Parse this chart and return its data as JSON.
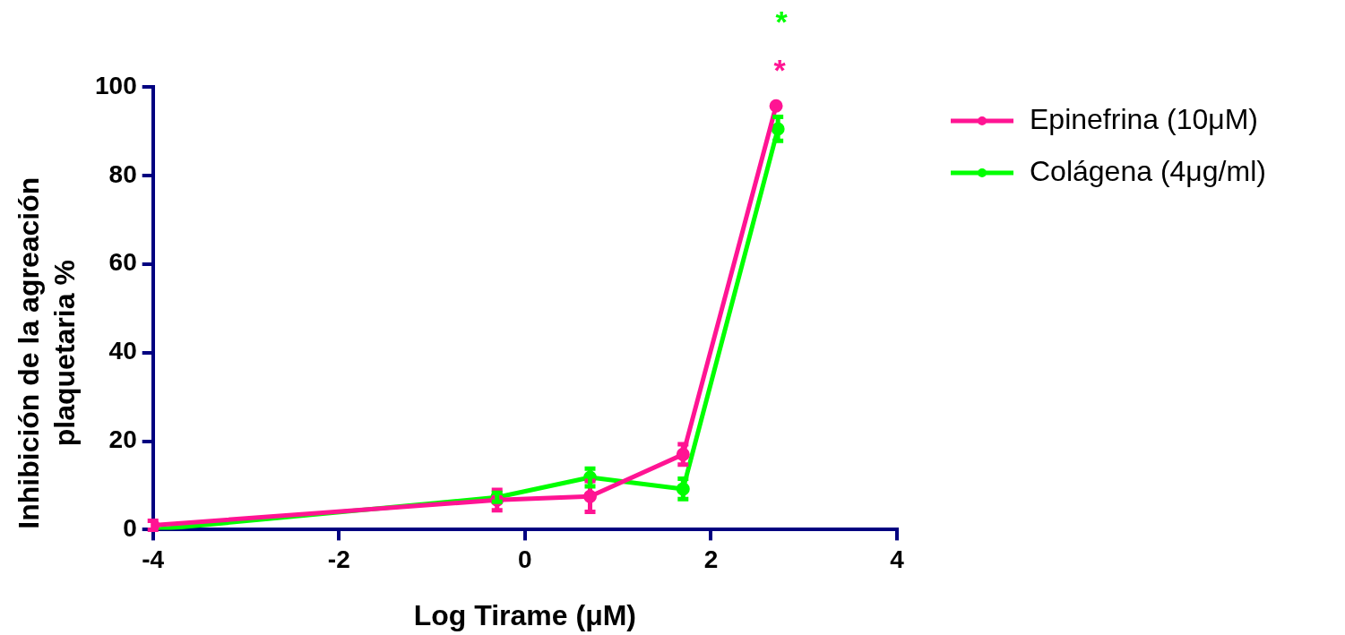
{
  "chart_data": {
    "type": "line",
    "xlabel": "Log Tirame (μM)",
    "ylabel": "Inhibición de la agreación\nplaquetaria %",
    "xlim": [
      -4,
      4
    ],
    "xticks": [
      -4,
      -2,
      0,
      2,
      4
    ],
    "ylim": [
      0,
      100
    ],
    "yticks": [
      0,
      20,
      40,
      60,
      80,
      100
    ],
    "grid": false,
    "legend": "right",
    "marker": "circle",
    "line_style": "solid",
    "series": [
      {
        "name": "Epinefrina (10μM)",
        "color": "#ff1493",
        "x": [
          -4,
          -0.3,
          0.7,
          1.7,
          2.7
        ],
        "values": [
          1,
          6.7,
          7.5,
          17,
          95.7
        ],
        "errors": [
          1,
          2.3,
          3.5,
          2.3,
          null
        ]
      },
      {
        "name": "Colágena (4μg/ml)",
        "color": "#00ff00",
        "x": [
          -4,
          -0.3,
          0.7,
          1.7,
          2.72
        ],
        "values": [
          0,
          7.3,
          11.8,
          9.2,
          90.5
        ],
        "errors": [
          null,
          1,
          2,
          2.3,
          2.7
        ]
      }
    ],
    "annotations": [
      "*",
      "*"
    ]
  }
}
